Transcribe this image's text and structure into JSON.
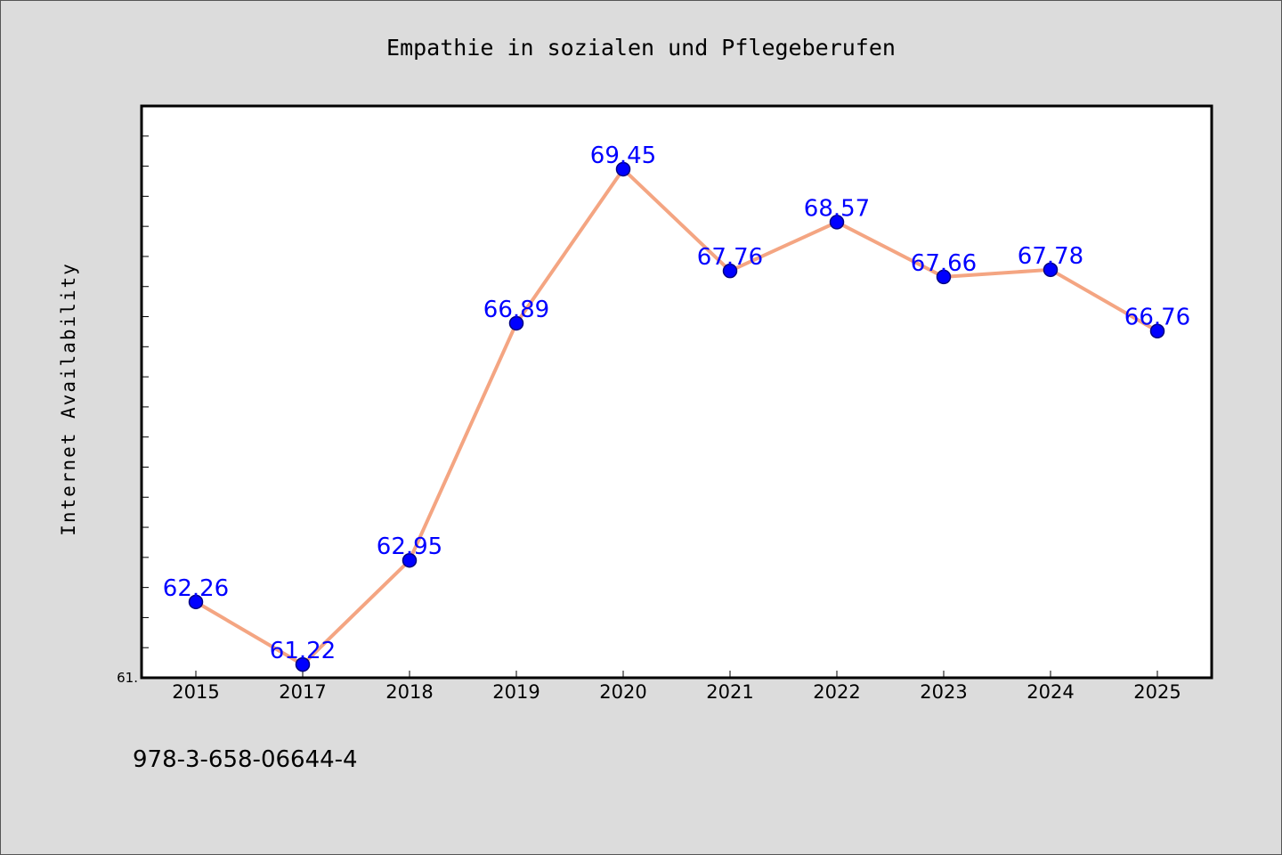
{
  "chart_data": {
    "type": "line",
    "title": "Empathie in sozialen und Pflegeberufen",
    "ylabel": "Internet Availability",
    "xlabel": "",
    "categories": [
      "2015",
      "2017",
      "2018",
      "2019",
      "2020",
      "2021",
      "2022",
      "2023",
      "2024",
      "2025"
    ],
    "series": [
      {
        "values": [
          62.26,
          61.22,
          62.95,
          66.89,
          69.45,
          67.76,
          68.57,
          67.66,
          67.78,
          66.76
        ],
        "data_labels": [
          "62.26",
          "61.22",
          "62.95",
          "66.89",
          "69.45",
          "67.76",
          "68.57",
          "67.66",
          "67.78",
          "66.76"
        ]
      }
    ],
    "ylim": [
      61.0,
      70.5
    ],
    "ytick_labels": [
      "61."
    ],
    "grid": false,
    "legend": "none",
    "colors": {
      "line": "#f4a582",
      "marker": "#0000ff",
      "marker_edge": "#000080",
      "data_label": "#0000ff",
      "background": "#dcdcdc",
      "plot_area": "#ffffff"
    }
  },
  "footer": {
    "code": "978-3-658-06644-4"
  }
}
